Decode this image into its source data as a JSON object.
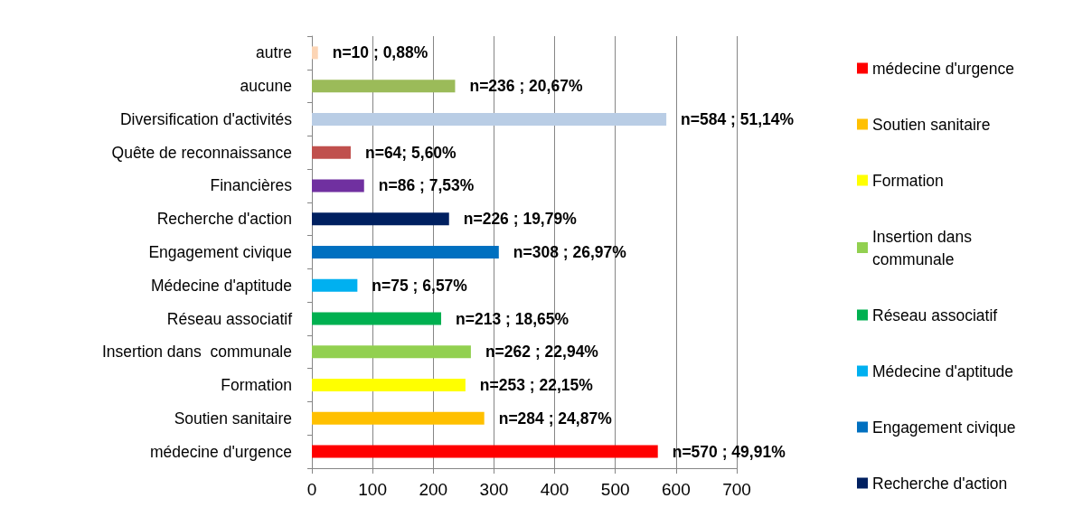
{
  "chart_data": {
    "type": "bar",
    "orientation": "horizontal",
    "categories": [
      "autre",
      "aucune",
      "Diversification d'activités",
      "Quête de reconnaissance",
      "Financières",
      "Recherche d'action",
      "Engagement civique",
      "Médecine d'aptitude",
      "Réseau associatif",
      "Insertion dans  communale",
      "Formation",
      "Soutien sanitaire",
      "médecine d'urgence"
    ],
    "series": [
      {
        "name": "médecine d'urgence",
        "color": "#ff0000",
        "values": [
          null,
          null,
          null,
          null,
          null,
          null,
          null,
          null,
          null,
          null,
          null,
          null,
          570
        ],
        "value_labels": [
          null,
          null,
          null,
          null,
          null,
          null,
          null,
          null,
          null,
          null,
          null,
          null,
          "n=570 ; 49,91%"
        ]
      },
      {
        "name": "Soutien sanitaire",
        "color": "#ffc000",
        "values": [
          null,
          null,
          null,
          null,
          null,
          null,
          null,
          null,
          null,
          null,
          null,
          284,
          null
        ],
        "value_labels": [
          null,
          null,
          null,
          null,
          null,
          null,
          null,
          null,
          null,
          null,
          null,
          "n=284 ; 24,87%",
          null
        ]
      },
      {
        "name": "Formation",
        "color": "#ffff00",
        "values": [
          null,
          null,
          null,
          null,
          null,
          null,
          null,
          null,
          null,
          null,
          253,
          null,
          null
        ],
        "value_labels": [
          null,
          null,
          null,
          null,
          null,
          null,
          null,
          null,
          null,
          null,
          "n=253 ; 22,15%",
          null,
          null
        ]
      },
      {
        "name": "Insertion dans communale",
        "color": "#92d050",
        "values": [
          null,
          null,
          null,
          null,
          null,
          null,
          null,
          null,
          null,
          262,
          null,
          null,
          null
        ],
        "value_labels": [
          null,
          null,
          null,
          null,
          null,
          null,
          null,
          null,
          null,
          "n=262 ; 22,94%",
          null,
          null,
          null
        ]
      },
      {
        "name": "Réseau associatif",
        "color": "#00b050",
        "values": [
          null,
          null,
          null,
          null,
          null,
          null,
          null,
          null,
          213,
          null,
          null,
          null,
          null
        ],
        "value_labels": [
          null,
          null,
          null,
          null,
          null,
          null,
          null,
          null,
          "n=213 ; 18,65%",
          null,
          null,
          null,
          null
        ]
      },
      {
        "name": "Médecine d'aptitude",
        "color": "#00b0f0",
        "values": [
          null,
          null,
          null,
          null,
          null,
          null,
          null,
          75,
          null,
          null,
          null,
          null,
          null
        ],
        "value_labels": [
          null,
          null,
          null,
          null,
          null,
          null,
          null,
          "n=75 ; 6,57%",
          null,
          null,
          null,
          null,
          null
        ]
      },
      {
        "name": "Engagement civique",
        "color": "#0070c0",
        "values": [
          null,
          null,
          null,
          null,
          null,
          null,
          308,
          null,
          null,
          null,
          null,
          null,
          null
        ],
        "value_labels": [
          null,
          null,
          null,
          null,
          null,
          null,
          "n=308 ; 26,97%",
          null,
          null,
          null,
          null,
          null,
          null
        ]
      },
      {
        "name": "Recherche d'action",
        "color": "#002060",
        "values": [
          null,
          null,
          null,
          null,
          null,
          226,
          null,
          null,
          null,
          null,
          null,
          null,
          null
        ],
        "value_labels": [
          null,
          null,
          null,
          null,
          null,
          "n=226 ; 19,79%",
          null,
          null,
          null,
          null,
          null,
          null,
          null
        ]
      },
      {
        "color": "#7030a0",
        "values": [
          null,
          null,
          null,
          null,
          86,
          null,
          null,
          null,
          null,
          null,
          null,
          null,
          null
        ],
        "value_labels": [
          null,
          null,
          null,
          null,
          "n=86 ; 7,53%",
          null,
          null,
          null,
          null,
          null,
          null,
          null,
          null
        ]
      },
      {
        "color": "#c0504d",
        "values": [
          null,
          null,
          null,
          64,
          null,
          null,
          null,
          null,
          null,
          null,
          null,
          null,
          null
        ],
        "value_labels": [
          null,
          null,
          null,
          "n=64; 5,60%",
          null,
          null,
          null,
          null,
          null,
          null,
          null,
          null,
          null
        ]
      },
      {
        "color": "#b9cde5",
        "values": [
          null,
          null,
          584,
          null,
          null,
          null,
          null,
          null,
          null,
          null,
          null,
          null,
          null
        ],
        "value_labels": [
          null,
          null,
          "n=584 ; 51,14%",
          null,
          null,
          null,
          null,
          null,
          null,
          null,
          null,
          null,
          null
        ]
      },
      {
        "color": "#9bbb59",
        "values": [
          null,
          236,
          null,
          null,
          null,
          null,
          null,
          null,
          null,
          null,
          null,
          null,
          null
        ],
        "value_labels": [
          null,
          "n=236 ; 20,67%",
          null,
          null,
          null,
          null,
          null,
          null,
          null,
          null,
          null,
          null,
          null
        ]
      },
      {
        "color": "#fcd5b5",
        "values": [
          10,
          null,
          null,
          null,
          null,
          null,
          null,
          null,
          null,
          null,
          null,
          null,
          null
        ],
        "value_labels": [
          "n=10 ; 0,88%",
          null,
          null,
          null,
          null,
          null,
          null,
          null,
          null,
          null,
          null,
          null,
          null
        ]
      }
    ],
    "xlim": [
      0,
      700
    ],
    "xticks": [
      0,
      100,
      200,
      300,
      400,
      500,
      600,
      700
    ],
    "grid": "x",
    "legend": "right"
  }
}
